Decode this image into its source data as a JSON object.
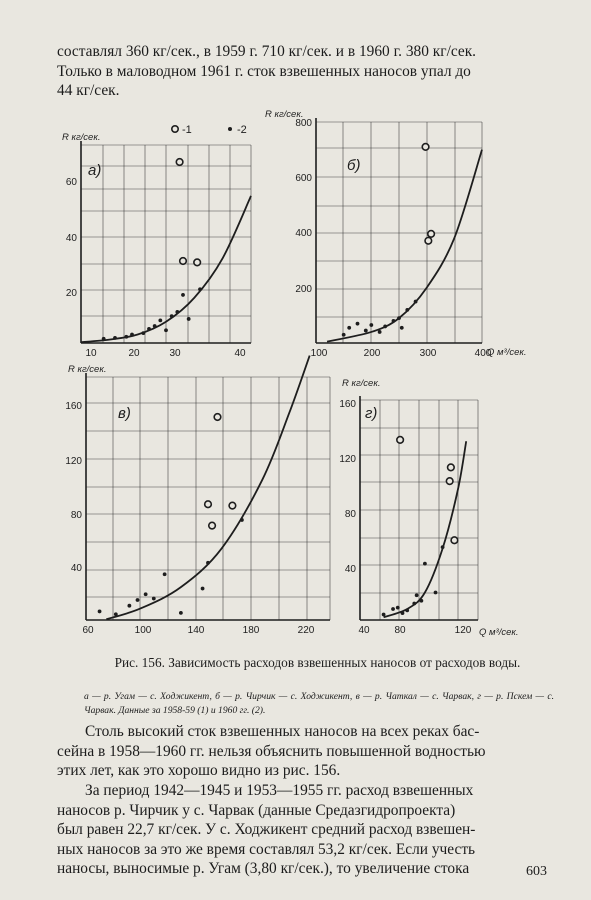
{
  "text_top": [
    "составлял 360 кг/сек., в 1959 г. 710 кг/сек. и в 1960 г. 380 кг/сек.",
    "Только в маловодном 1961 г. сток взвешенных наносов упал до",
    "44 кг/сек."
  ],
  "legend": {
    "open": "-1",
    "filled": "-2"
  },
  "caption": {
    "title": "Рис. 156. Зависимость расходов взвешенных наносов от расходов воды.",
    "legend_text": "а — р. Угам — с. Ходжикент, б — р. Чирчик — с. Ходжикент, в — р. Чаткал — с. Чарвак, г — р. Пскем — с. Чарвак. Данные за 1958-59 (1) и 1960 гг. (2)."
  },
  "text_bottom_p1": [
    "Столь высокий сток взвешенных наносов на всех реках бас-",
    "сейна в 1958—1960 гг. нельзя объяснить повышенной водностью",
    "этих лет, как это хорошо видно из рис. 156."
  ],
  "text_bottom_p2": [
    "За период 1942—1945 и 1953—1955 гг. расход взвешенных",
    "наносов р. Чирчик у с. Чарвак (данные Средазгидропроекта)",
    "был равен 22,7 кг/сек. У с. Ходжикент средний расход взвешен-",
    "ных наносов за это же время составлял 53,2 кг/сек. Если учесть",
    "наносы, выносимые р. Угам (3,80 кг/сек.), то увеличение стока"
  ],
  "page_number": "603",
  "chart_data": [
    {
      "type": "scatter",
      "panel_label": "а)",
      "ylabel": "R кг/сек.",
      "xlabel": "",
      "xlim": [
        10,
        40
      ],
      "ylim": [
        0,
        70
      ],
      "xticks": [
        "10",
        "20",
        "30",
        "40"
      ],
      "yticks": [
        "20",
        "40",
        "60"
      ],
      "series": [
        {
          "name": "1",
          "marker": "open",
          "points": [
            [
              27.4,
              64
            ],
            [
              28,
              29
            ],
            [
              30.5,
              28.5
            ]
          ]
        },
        {
          "name": "2",
          "marker": "filled",
          "points": [
            [
              14,
              1.5
            ],
            [
              16,
              1.8
            ],
            [
              18,
              2.2
            ],
            [
              19,
              3
            ],
            [
              21,
              3.5
            ],
            [
              22,
              5
            ],
            [
              23,
              6
            ],
            [
              24,
              8
            ],
            [
              25,
              4.5
            ],
            [
              26,
              9.5
            ],
            [
              27,
              11
            ],
            [
              29,
              8.5
            ],
            [
              31,
              19
            ],
            [
              28,
              17
            ]
          ]
        }
      ],
      "curve": [
        [
          10,
          0.3
        ],
        [
          15,
          1.2
        ],
        [
          20,
          3
        ],
        [
          25,
          7.5
        ],
        [
          30,
          16
        ],
        [
          35,
          30
        ],
        [
          40,
          52
        ]
      ]
    },
    {
      "type": "scatter",
      "panel_label": "б)",
      "ylabel": "R кг/сек.",
      "xlabel": "Q м³/сек.",
      "xlim": [
        100,
        400
      ],
      "ylim": [
        0,
        800
      ],
      "xticks": [
        "100",
        "200",
        "300",
        "400"
      ],
      "yticks": [
        "200",
        "400",
        "600",
        "800"
      ],
      "series": [
        {
          "name": "1",
          "marker": "open",
          "points": [
            [
              298,
              710
            ],
            [
              308,
              395
            ],
            [
              303,
              370
            ]
          ]
        },
        {
          "name": "2",
          "marker": "filled",
          "points": [
            [
              150,
              30
            ],
            [
              160,
              55
            ],
            [
              175,
              70
            ],
            [
              190,
              45
            ],
            [
              200,
              65
            ],
            [
              215,
              40
            ],
            [
              225,
              60
            ],
            [
              240,
              80
            ],
            [
              250,
              90
            ],
            [
              255,
              55
            ],
            [
              265,
              120
            ],
            [
              280,
              150
            ]
          ]
        }
      ],
      "curve": [
        [
          120,
          5
        ],
        [
          200,
          40
        ],
        [
          250,
          90
        ],
        [
          300,
          200
        ],
        [
          350,
          380
        ],
        [
          400,
          700
        ]
      ]
    },
    {
      "type": "scatter",
      "panel_label": "в)",
      "ylabel": "R кг/сек.",
      "xlabel": "",
      "xlim": [
        60,
        240
      ],
      "ylim": [
        0,
        170
      ],
      "xticks": [
        "60",
        "100",
        "140",
        "180",
        "220"
      ],
      "yticks": [
        "40",
        "80",
        "120",
        "160"
      ],
      "series": [
        {
          "name": "1",
          "marker": "open",
          "points": [
            [
              157,
              142
            ],
            [
              150,
              81
            ],
            [
              168,
              80
            ],
            [
              153,
              66
            ]
          ]
        },
        {
          "name": "2",
          "marker": "filled",
          "points": [
            [
              70,
              6
            ],
            [
              82,
              4
            ],
            [
              92,
              10
            ],
            [
              98,
              14
            ],
            [
              104,
              18
            ],
            [
              110,
              15
            ],
            [
              118,
              32
            ],
            [
              130,
              5
            ],
            [
              146,
              22
            ],
            [
              150,
              40
            ],
            [
              175,
              70
            ]
          ]
        }
      ],
      "curve": [
        [
          75,
          0.5
        ],
        [
          100,
          8
        ],
        [
          130,
          23
        ],
        [
          160,
          50
        ],
        [
          190,
          98
        ],
        [
          210,
          145
        ],
        [
          225,
          185
        ]
      ]
    },
    {
      "type": "scatter",
      "panel_label": "г)",
      "ylabel": "R кг/сек.",
      "xlabel": "Q м³/сек.",
      "xlim": [
        40,
        140
      ],
      "ylim": [
        0,
        160
      ],
      "xticks": [
        "40",
        "80",
        "120"
      ],
      "yticks": [
        "40",
        "80",
        "120",
        "160"
      ],
      "series": [
        {
          "name": "1",
          "marker": "open",
          "points": [
            [
              74,
              131
            ],
            [
              116,
              101
            ],
            [
              117,
              111
            ],
            [
              120,
              58
            ]
          ]
        },
        {
          "name": "2",
          "marker": "filled",
          "points": [
            [
              60,
              4
            ],
            [
              68,
              8
            ],
            [
              72,
              9
            ],
            [
              76,
              5
            ],
            [
              80,
              7
            ],
            [
              86,
              12
            ],
            [
              88,
              18
            ],
            [
              92,
              14
            ],
            [
              95,
              41
            ],
            [
              104,
              20
            ],
            [
              110,
              53
            ]
          ]
        }
      ],
      "curve": [
        [
          60,
          2
        ],
        [
          80,
          8
        ],
        [
          95,
          20
        ],
        [
          110,
          52
        ],
        [
          123,
          95
        ],
        [
          130,
          130
        ]
      ]
    }
  ]
}
